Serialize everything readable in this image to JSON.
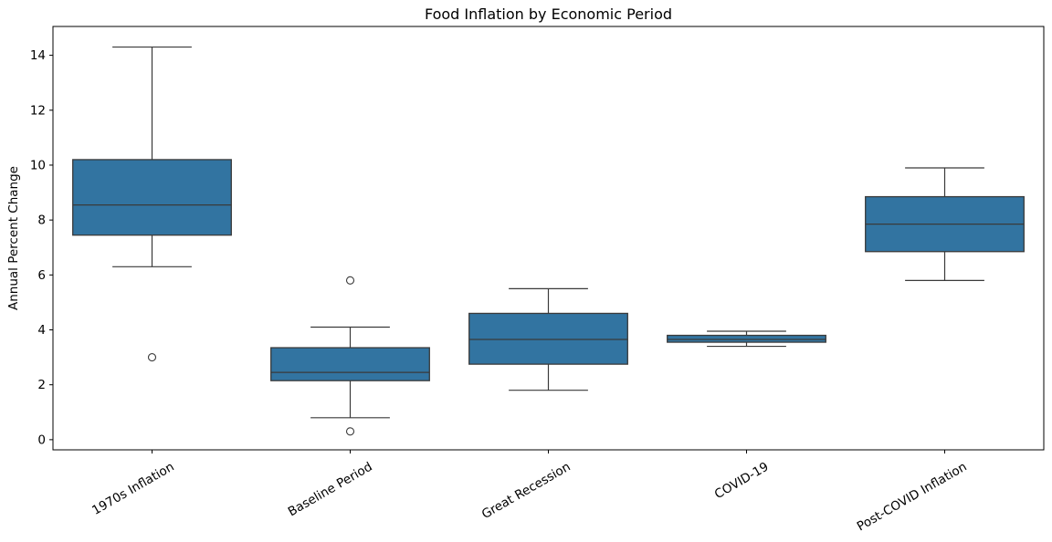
{
  "chart_data": {
    "type": "box",
    "title": "Food Inflation by Economic Period",
    "ylabel": "Annual Percent Change",
    "xlabel": "",
    "categories": [
      "1970s Inflation",
      "Baseline Period",
      "Great Recession",
      "COVID-19",
      "Post-COVID Inflation"
    ],
    "yticks": [
      0,
      2,
      4,
      6,
      8,
      10,
      12,
      14
    ],
    "ylim": [
      -0.37,
      15.05
    ],
    "grid": false,
    "legend": "none",
    "colors": {
      "box_fill": "#3274a1",
      "box_edge": "#3a3a3a",
      "whisker": "#3a3a3a",
      "flier_edge": "#3a3a3a",
      "axis": "#000000",
      "text": "#000000",
      "background": "#ffffff"
    },
    "series": [
      {
        "name": "1970s Inflation",
        "whislo": 6.3,
        "q1": 7.45,
        "med": 8.55,
        "q3": 10.2,
        "whishi": 14.3,
        "fliers": [
          3.0
        ]
      },
      {
        "name": "Baseline Period",
        "whislo": 0.8,
        "q1": 2.15,
        "med": 2.45,
        "q3": 3.35,
        "whishi": 4.1,
        "fliers": [
          5.8,
          0.3
        ]
      },
      {
        "name": "Great Recession",
        "whislo": 1.8,
        "q1": 2.75,
        "med": 3.65,
        "q3": 4.6,
        "whishi": 5.5,
        "fliers": []
      },
      {
        "name": "COVID-19",
        "whislo": 3.4,
        "q1": 3.55,
        "med": 3.65,
        "q3": 3.8,
        "whishi": 3.95,
        "fliers": []
      },
      {
        "name": "Post-COVID Inflation",
        "whislo": 5.8,
        "q1": 6.85,
        "med": 7.85,
        "q3": 8.85,
        "whishi": 9.9,
        "fliers": []
      }
    ]
  }
}
